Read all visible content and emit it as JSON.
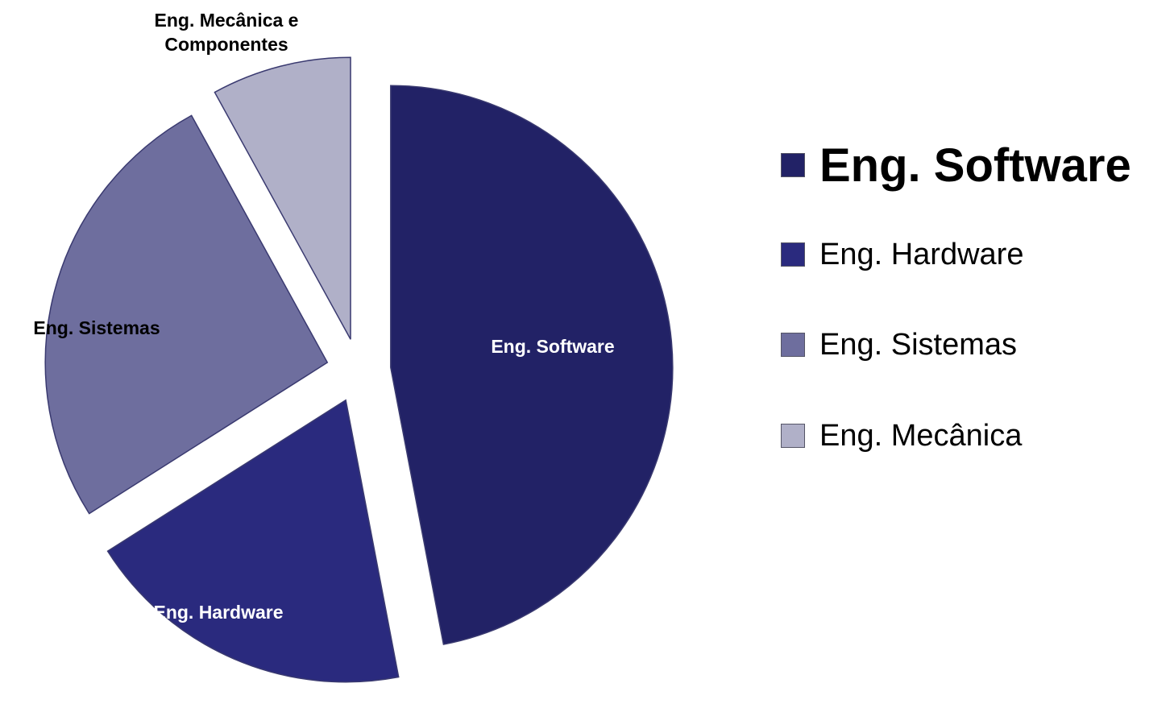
{
  "chart_data": {
    "type": "pie",
    "categories": [
      "Eng. Software",
      "Eng. Hardware",
      "Eng. Sistemas",
      "Eng. Mecânica"
    ],
    "slice_labels": [
      "Eng. Software",
      "Eng. Hardware",
      "Eng. Sistemas",
      "Eng. Mecânica e Componentes"
    ],
    "values": [
      47,
      19,
      26,
      8
    ],
    "colors": [
      "#222266",
      "#2a2a7e",
      "#6e6e9e",
      "#b0b0c8"
    ],
    "exploded": true,
    "highlighted": 0
  }
}
